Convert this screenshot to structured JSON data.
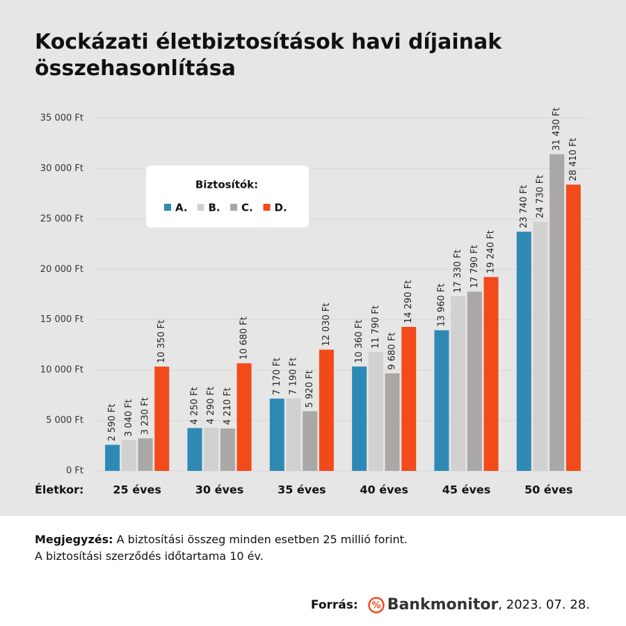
{
  "chart_data": {
    "type": "bar",
    "title": "Kockázati életbiztosítások havi díjainak összehasonlítása",
    "xlabel": "Életkor:",
    "legend_title": "Biztosítók:",
    "legend_position": "upper left",
    "categories": [
      "25 éves",
      "30 éves",
      "35 éves",
      "40 éves",
      "45 éves",
      "50 éves"
    ],
    "series": [
      {
        "name": "A.",
        "color": "#2e8ab5",
        "values": [
          2590,
          4250,
          7170,
          10360,
          13960,
          23740
        ],
        "value_labels": [
          "2 590 Ft",
          "4 250 Ft",
          "7 170 Ft",
          "10 360 Ft",
          "13 960 Ft",
          "23 740 Ft"
        ]
      },
      {
        "name": "B.",
        "color": "#d2d1d2",
        "values": [
          3040,
          4290,
          7190,
          11790,
          17330,
          24730
        ],
        "value_labels": [
          "3 040 Ft",
          "4 290 Ft",
          "7 190 Ft",
          "11 790 Ft",
          "17 330 Ft",
          "24 730 Ft"
        ]
      },
      {
        "name": "C.",
        "color": "#aaa7a7",
        "values": [
          3230,
          4210,
          5920,
          9680,
          17790,
          31430
        ],
        "value_labels": [
          "3 230 Ft",
          "4 210 Ft",
          "5 920 Ft",
          "9 680 Ft",
          "17 790 Ft",
          "31 430 Ft"
        ]
      },
      {
        "name": "D.",
        "color": "#f24a1a",
        "values": [
          10350,
          10680,
          12030,
          14290,
          19240,
          28410
        ],
        "value_labels": [
          "10 350 Ft",
          "10 680 Ft",
          "12 030 Ft",
          "14 290 Ft",
          "19 240 Ft",
          "28 410 Ft"
        ]
      }
    ],
    "ylim": [
      0,
      35000
    ],
    "yticks": [
      {
        "value": 0,
        "label": "0 Ft"
      },
      {
        "value": 5000,
        "label": "5 000 Ft"
      },
      {
        "value": 10000,
        "label": "10 000 Ft"
      },
      {
        "value": 15000,
        "label": "15 000 Ft"
      },
      {
        "value": 20000,
        "label": "20 000 Ft"
      },
      {
        "value": 25000,
        "label": "25 000 Ft"
      },
      {
        "value": 30000,
        "label": "30 000 Ft"
      },
      {
        "value": 35000,
        "label": "35 000 Ft"
      }
    ],
    "grid": true
  },
  "footer": {
    "note_label": "Megjegyzés:",
    "note_text": "A biztosítási összeg minden esetben 25 millió forint.",
    "note_line2": "A biztosítási szerződés időtartama 10 év.",
    "source_label": "Forrás:",
    "source_brand": "Bankmonitor",
    "source_date": ", 2023. 07. 28."
  }
}
